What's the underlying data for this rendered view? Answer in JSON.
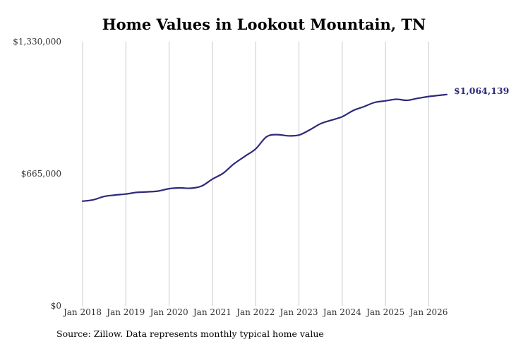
{
  "chart_data": {
    "type": "line",
    "title": "Home Values in Lookout Mountain, TN",
    "source": "Source: Zillow. Data represents monthly typical home value",
    "ylim": [
      0,
      1330000
    ],
    "y_ticks": [
      "$0",
      "$665,000",
      "$1,330,000"
    ],
    "x_ticks": [
      "Jan 2018",
      "Jan 2019",
      "Jan 2020",
      "Jan 2021",
      "Jan 2022",
      "Jan 2023",
      "Jan 2024",
      "Jan 2025",
      "Jan 2026"
    ],
    "grid": "vertical",
    "line_color": "#2e2a7a",
    "end_label": "$1,064,139",
    "series": [
      {
        "x": [
          "2018-01",
          "2018-04",
          "2018-07",
          "2018-10",
          "2019-01",
          "2019-04",
          "2019-07",
          "2019-10",
          "2020-01",
          "2020-04",
          "2020-07",
          "2020-10",
          "2021-01",
          "2021-04",
          "2021-07",
          "2021-10",
          "2022-01",
          "2022-04",
          "2022-07",
          "2022-10",
          "2023-01",
          "2023-04",
          "2023-07",
          "2023-10",
          "2024-01",
          "2024-04",
          "2024-07",
          "2024-10",
          "2025-01",
          "2025-04",
          "2025-07",
          "2025-10",
          "2026-01",
          "2026-04",
          "2026-06"
        ],
        "values": [
          527000,
          534000,
          551000,
          558000,
          563000,
          571000,
          574000,
          578000,
          590000,
          594000,
          592000,
          603000,
          638000,
          668000,
          715000,
          753000,
          790000,
          851000,
          862000,
          856000,
          860000,
          886000,
          917000,
          935000,
          952000,
          983000,
          1003000,
          1024000,
          1032000,
          1040000,
          1035000,
          1045000,
          1054000,
          1060000,
          1064139
        ]
      }
    ]
  }
}
